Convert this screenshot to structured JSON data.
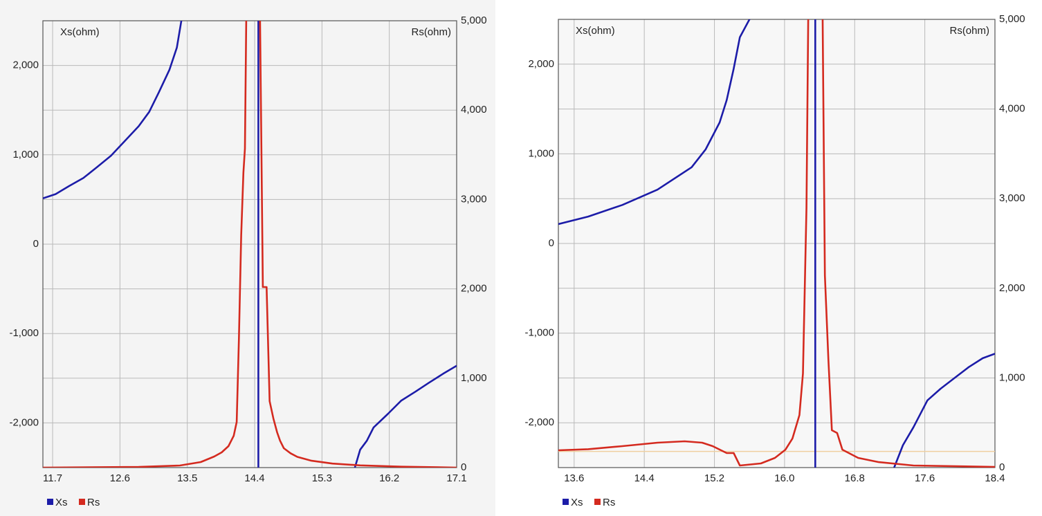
{
  "chart_data": [
    {
      "type": "line",
      "y_label": "Xs(ohm)",
      "y2_label": "Rs(ohm)",
      "grid": true,
      "xlim": [
        11.57,
        17.1
      ],
      "xticks": [
        11.7,
        12.6,
        13.5,
        14.4,
        15.3,
        16.2,
        17.1
      ],
      "ylim": [
        -2500,
        2500
      ],
      "yticks": [
        {
          "value": -2000,
          "label": "-2,000"
        },
        {
          "value": -1000,
          "label": "-1,000"
        },
        0,
        {
          "value": 1000,
          "label": "1,000"
        },
        {
          "value": 2000,
          "label": "2,000"
        }
      ],
      "y2lim": [
        0,
        5000
      ],
      "y2ticks": [
        0,
        {
          "value": 1000,
          "label": "1,000"
        },
        {
          "value": 2000,
          "label": "2,000"
        },
        {
          "value": 3000,
          "label": "3,000"
        },
        {
          "value": 4000,
          "label": "4,000"
        },
        {
          "value": 5000,
          "label": "5,000"
        }
      ],
      "series": [
        {
          "name": "Xs",
          "color": "#1c1ca8",
          "x": [
            11.57,
            11.74,
            11.92,
            12.11,
            12.29,
            12.48,
            12.66,
            12.85,
            12.99,
            13.12,
            13.26,
            13.36,
            13.42,
            13.44,
            null,
            14.45,
            14.45,
            null,
            15.74,
            15.81,
            15.9,
            15.99,
            16.18,
            16.36,
            16.55,
            16.73,
            16.92,
            17.1
          ],
          "values": [
            512,
            560,
            650,
            740,
            860,
            990,
            1150,
            1320,
            1480,
            1700,
            1950,
            2200,
            2500,
            2600,
            null,
            2600,
            -2600,
            null,
            -2500,
            -2300,
            -2200,
            -2050,
            -1900,
            -1750,
            -1650,
            -1550,
            -1450,
            -1360
          ]
        },
        {
          "name": "Rs",
          "color": "#d42a1f",
          "axis": "y2",
          "x": [
            11.57,
            12.85,
            13.4,
            13.68,
            13.86,
            13.96,
            14.05,
            14.12,
            14.16,
            14.19,
            14.22,
            14.25,
            14.27,
            14.3,
            14.46,
            14.51,
            14.56,
            14.6,
            14.65,
            14.7,
            14.74,
            14.79,
            14.88,
            14.97,
            15.16,
            15.44,
            15.81,
            16.36,
            17.1
          ],
          "values": [
            0,
            8,
            23,
            62,
            124,
            170,
            240,
            356,
            511,
            1440,
            2600,
            3300,
            3570,
            6000,
            6000,
            2020,
            2020,
            743,
            550,
            395,
            300,
            217,
            160,
            120,
            77,
            45,
            25,
            10,
            0
          ]
        }
      ]
    },
    {
      "type": "line",
      "y_label": "Xs(ohm)",
      "y2_label": "Rs(ohm)",
      "grid": true,
      "xlim": [
        13.42,
        18.4
      ],
      "xticks": [
        13.6,
        14.4,
        15.2,
        {
          "value": 16,
          "label": "16.0"
        },
        16.8,
        17.6,
        18.4
      ],
      "ylim": [
        -2500,
        2500
      ],
      "yticks": [
        {
          "value": -2000,
          "label": "-2,000"
        },
        {
          "value": -1000,
          "label": "-1,000"
        },
        0,
        {
          "value": 1000,
          "label": "1,000"
        },
        {
          "value": 2000,
          "label": "2,000"
        }
      ],
      "y2lim": [
        0,
        5000
      ],
      "y2ticks": [
        0,
        {
          "value": 1000,
          "label": "1,000"
        },
        {
          "value": 2000,
          "label": "2,000"
        },
        {
          "value": 3000,
          "label": "3,000"
        },
        {
          "value": 4000,
          "label": "4,000"
        },
        {
          "value": 5000,
          "label": "5,000"
        }
      ],
      "reference_line": {
        "axis": "y2",
        "value": 180,
        "color": "#efcf9f"
      },
      "series": [
        {
          "name": "Xs",
          "color": "#1c1ca8",
          "x": [
            13.42,
            13.76,
            14.15,
            14.55,
            14.94,
            15.1,
            15.26,
            15.34,
            15.42,
            15.49,
            15.6,
            15.62,
            null,
            16.35,
            16.35,
            null,
            17.25,
            17.35,
            17.47,
            17.63,
            17.78,
            17.94,
            18.1,
            18.26,
            18.4
          ],
          "values": [
            216,
            300,
            430,
            600,
            850,
            1050,
            1350,
            1600,
            1950,
            2300,
            2500,
            2600,
            null,
            2600,
            -2600,
            null,
            -2500,
            -2250,
            -2050,
            -1750,
            -1620,
            -1500,
            -1380,
            -1280,
            -1230
          ]
        },
        {
          "name": "Rs",
          "color": "#d42a1f",
          "axis": "y2",
          "x": [
            13.42,
            13.76,
            14.15,
            14.55,
            14.86,
            15.06,
            15.18,
            15.34,
            15.42,
            15.49,
            15.73,
            15.89,
            16.01,
            16.09,
            16.17,
            16.21,
            16.25,
            16.27,
            16.29,
            16.43,
            16.46,
            16.5,
            16.54,
            16.6,
            16.66,
            16.84,
            17.07,
            17.47,
            18.4
          ],
          "values": [
            193,
            205,
            239,
            278,
            293,
            278,
            239,
            162,
            162,
            23,
            46,
            108,
            200,
            324,
            586,
            1049,
            2901,
            4985,
            5500,
            5500,
            2145,
            1200,
            417,
            386,
            200,
            108,
            62,
            23,
            8
          ]
        }
      ]
    }
  ]
}
